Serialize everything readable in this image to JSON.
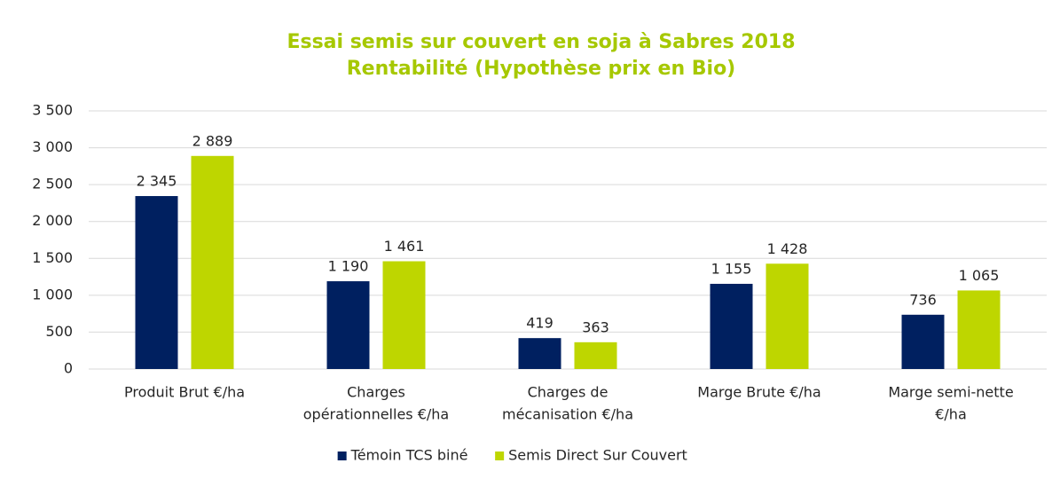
{
  "chart_data": {
    "type": "bar",
    "title": "Essai semis sur couvert en soja à Sabres 2018",
    "subtitle": "Rentabilité (Hypothèse prix en Bio)",
    "categories": [
      [
        "Produit Brut €/ha"
      ],
      [
        "Charges",
        "opérationnelles €/ha"
      ],
      [
        "Charges de",
        "mécanisation €/ha"
      ],
      [
        "Marge Brute €/ha"
      ],
      [
        "Marge semi-nette",
        "€/ha"
      ]
    ],
    "series": [
      {
        "name": "Témoin TCS biné",
        "color": "#002060",
        "values": [
          2345,
          1190,
          419,
          1155,
          736
        ],
        "value_labels": [
          "2 345",
          "1 190",
          "419",
          "1 155",
          "736"
        ]
      },
      {
        "name": "Semis Direct Sur Couvert",
        "color": "#bed600",
        "values": [
          2889,
          1461,
          363,
          1428,
          1065
        ],
        "value_labels": [
          "2 889",
          "1 461",
          "363",
          "1 428",
          "1 065"
        ]
      }
    ],
    "ylim": [
      0,
      3500
    ],
    "yticks": [
      0,
      500,
      {
        "value": 1000,
        "label": "1 000"
      },
      {
        "value": 1500,
        "label": "1 500"
      },
      {
        "value": 2000,
        "label": "2 000"
      },
      {
        "value": 2500,
        "label": "2 500"
      },
      {
        "value": 3000,
        "label": "3 000"
      },
      {
        "value": 3500,
        "label": "3 500"
      }
    ],
    "grid": true,
    "legend": "bottom"
  }
}
